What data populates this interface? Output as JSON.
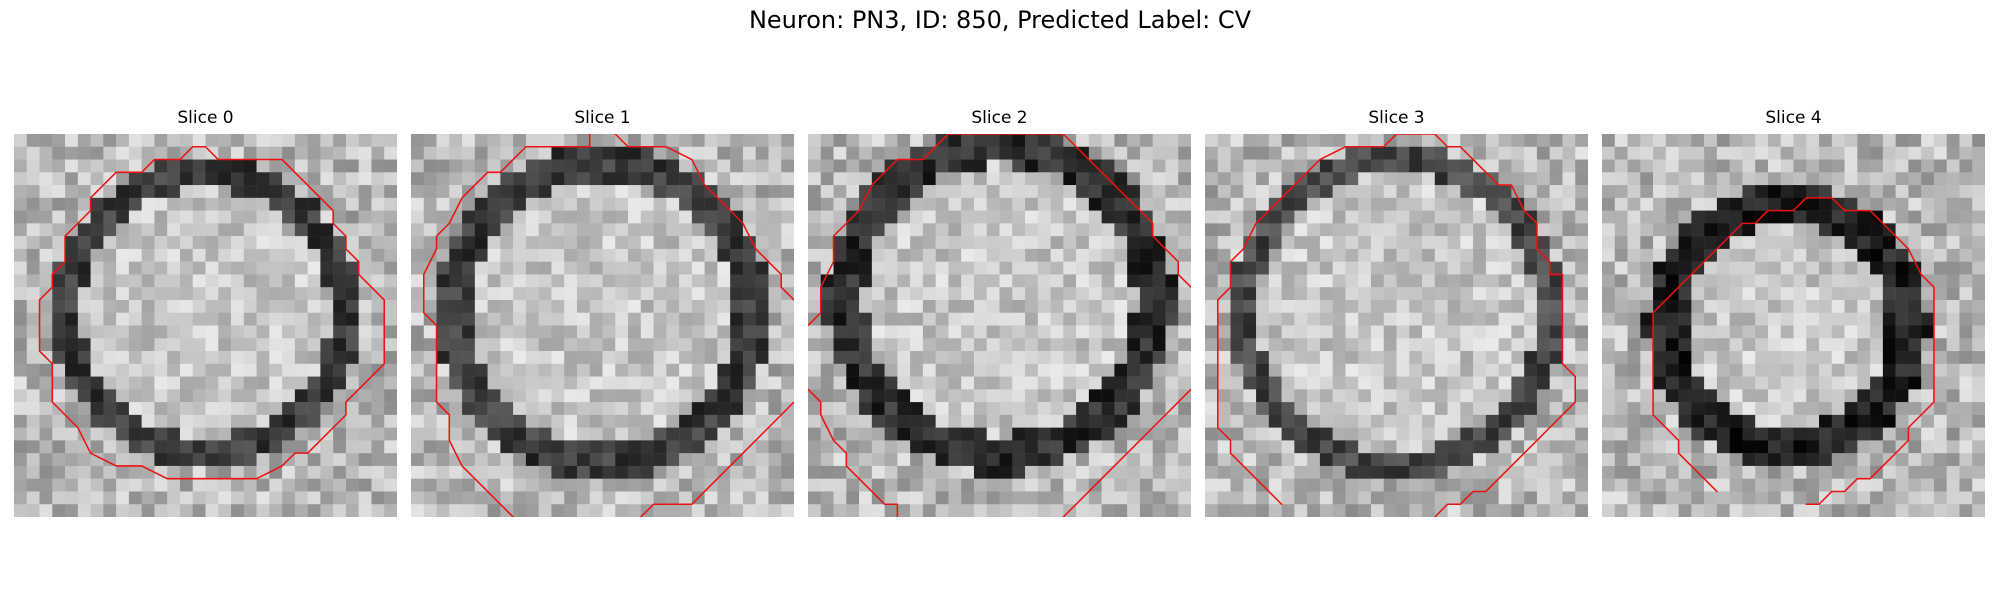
{
  "figure": {
    "title": "Neuron: PN3, ID: 850, Predicted Label: CV"
  },
  "colors": {
    "contour": "#ee1111",
    "background": "#ffffff",
    "grid_dark": "#1a1a1a",
    "grid_light": "#f2f2f2"
  },
  "slices": [
    {
      "label": "Slice 0"
    },
    {
      "label": "Slice 1"
    },
    {
      "label": "Slice 2"
    },
    {
      "label": "Slice 3"
    },
    {
      "label": "Slice 4"
    }
  ]
}
